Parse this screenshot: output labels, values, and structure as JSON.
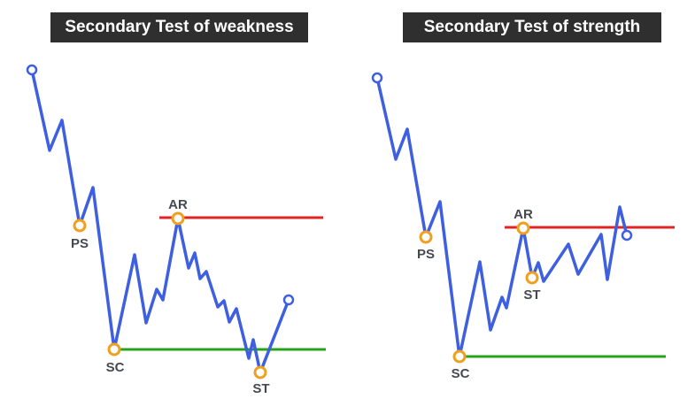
{
  "colors": {
    "price_line": "#3d5fe0",
    "resistance": "#e02424",
    "support": "#27a31a",
    "marker": "#f0a020",
    "end_marker": "#3d5fe0",
    "title_bg": "#2f2f2f",
    "title_text": "#ffffff",
    "label_text": "#444a4f"
  },
  "panels": [
    {
      "title": "Secondary Test of weakness",
      "labels": {
        "ps": "PS",
        "sc": "SC",
        "ar": "AR",
        "st": "ST"
      }
    },
    {
      "title": "Secondary Test of strength",
      "labels": {
        "ps": "PS",
        "sc": "SC",
        "ar": "AR",
        "st": "ST"
      }
    }
  ]
}
